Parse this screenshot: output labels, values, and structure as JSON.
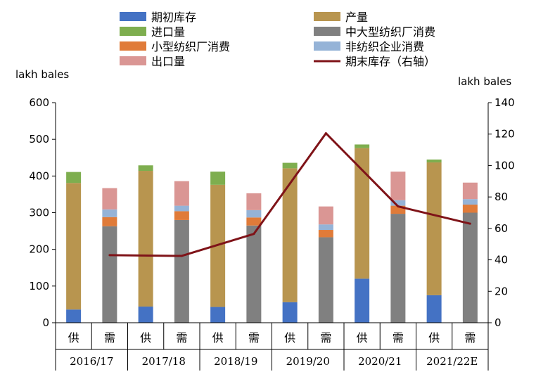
{
  "chart_data": {
    "type": "bar",
    "stacked": true,
    "y_left_label": "lakh bales",
    "y_right_label": "lakh bales",
    "ylim_left": [
      0,
      600
    ],
    "ylim_right": [
      0,
      140
    ],
    "y_left_ticks": [
      "0",
      "100",
      "200",
      "300",
      "400",
      "500",
      "600"
    ],
    "y_right_ticks": [
      "0",
      "20",
      "40",
      "60",
      "80",
      "100",
      "120",
      "140"
    ],
    "grid": false,
    "legend_position": "top",
    "groups": [
      "2016/17",
      "2017/18",
      "2018/19",
      "2019/20",
      "2020/21",
      "2021/22E"
    ],
    "categories": [
      "供",
      "需",
      "供",
      "需",
      "供",
      "需",
      "供",
      "需",
      "供",
      "需",
      "供",
      "需"
    ],
    "series": [
      {
        "name": "期初库存",
        "axis": "left",
        "color": "#4472C4",
        "values": [
          36,
          0,
          44,
          0,
          43,
          0,
          56,
          0,
          120,
          0,
          75,
          0
        ]
      },
      {
        "name": "产量",
        "axis": "left",
        "color": "#B8954F",
        "values": [
          345,
          0,
          370,
          0,
          333,
          0,
          365,
          0,
          356,
          0,
          362,
          0
        ]
      },
      {
        "name": "进口量",
        "axis": "left",
        "color": "#7EAE4F",
        "values": [
          30,
          0,
          15,
          0,
          36,
          0,
          15,
          0,
          10,
          0,
          8,
          0
        ]
      },
      {
        "name": "中大型纺织厂消费",
        "axis": "left",
        "color": "#808080",
        "values": [
          0,
          263,
          0,
          280,
          0,
          265,
          0,
          233,
          0,
          297,
          0,
          300
        ]
      },
      {
        "name": "小型纺织厂消费",
        "axis": "left",
        "color": "#E07B39",
        "values": [
          0,
          25,
          0,
          24,
          0,
          22,
          0,
          20,
          0,
          22,
          0,
          22
        ]
      },
      {
        "name": "非纺织企业消费",
        "axis": "left",
        "color": "#95B3D7",
        "values": [
          0,
          21,
          0,
          15,
          0,
          20,
          0,
          15,
          0,
          15,
          0,
          15
        ]
      },
      {
        "name": "出口量",
        "axis": "left",
        "color": "#DA9694",
        "values": [
          0,
          58,
          0,
          67,
          0,
          46,
          0,
          49,
          0,
          78,
          0,
          45
        ]
      },
      {
        "name": "期末库存（右轴）",
        "axis": "right",
        "type": "line",
        "color": "#7F1318",
        "x": [
          "2016/17",
          "2017/18",
          "2018/19",
          "2019/20",
          "2020/21",
          "2021/22E"
        ],
        "values": [
          43,
          42.5,
          56.5,
          120.5,
          74,
          63
        ]
      }
    ]
  }
}
